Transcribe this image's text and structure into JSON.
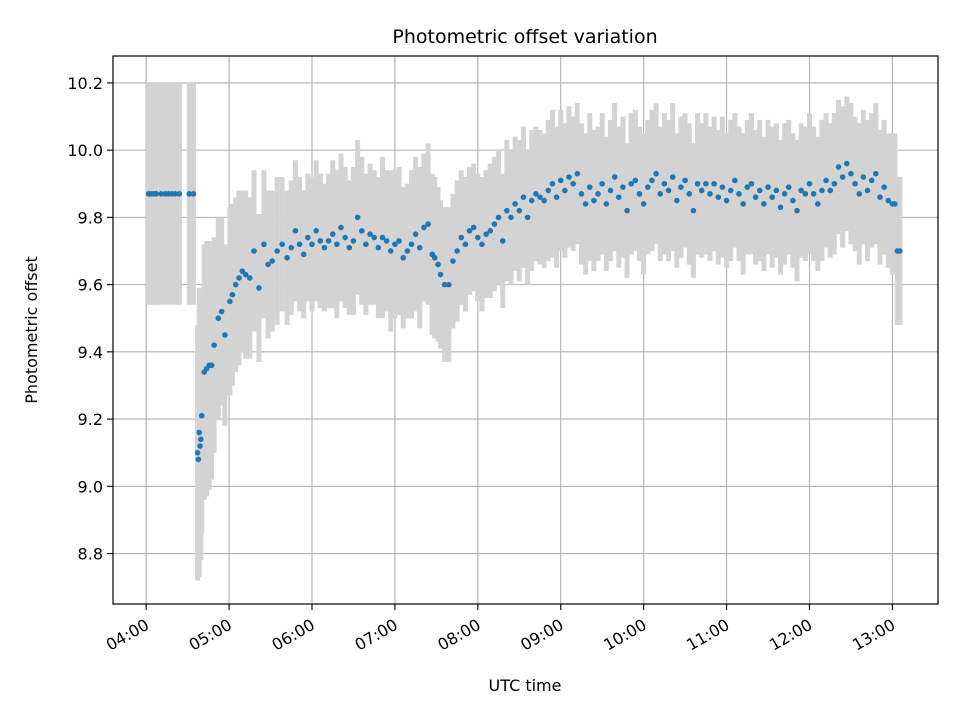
{
  "chart_data": {
    "type": "scatter",
    "title": "Photometric offset variation",
    "xlabel": "UTC time",
    "ylabel": "Photometric offset",
    "x_unit": "UTC hours",
    "xlim": [
      3.6,
      13.55
    ],
    "ylim": [
      8.65,
      10.28
    ],
    "x_ticks": [
      4,
      5,
      6,
      7,
      8,
      9,
      10,
      11,
      12,
      13
    ],
    "x_tick_labels": [
      "04:00",
      "05:00",
      "06:00",
      "07:00",
      "08:00",
      "09:00",
      "10:00",
      "11:00",
      "12:00",
      "13:00"
    ],
    "y_ticks": [
      8.8,
      9.0,
      9.2,
      9.4,
      9.6,
      9.8,
      10.0,
      10.2
    ],
    "y_tick_labels": [
      "8.8",
      "9.0",
      "9.2",
      "9.4",
      "9.6",
      "9.8",
      "10.0",
      "10.2"
    ],
    "grid": true,
    "legend": "none",
    "colors": {
      "points": "#1f77b4",
      "error_bars": "#d3d3d3",
      "grid": "#b0b0b0",
      "axes": "#000000"
    },
    "series": [
      {
        "x": [
          4.03,
          4.06,
          4.09,
          4.12,
          4.18,
          4.23,
          4.27,
          4.31,
          4.35,
          4.4,
          4.52,
          4.57,
          4.62,
          4.63,
          4.64,
          4.65,
          4.66,
          4.67,
          4.7,
          4.73,
          4.76,
          4.79,
          4.82,
          4.87,
          4.91,
          4.95,
          5.01,
          5.04,
          5.08,
          5.12,
          5.16,
          5.2,
          5.25,
          5.3,
          5.36,
          5.42,
          5.47,
          5.52,
          5.58,
          5.64,
          5.7,
          5.75,
          5.8,
          5.85,
          5.9,
          5.95,
          6.0,
          6.05,
          6.1,
          6.15,
          6.2,
          6.25,
          6.3,
          6.35,
          6.4,
          6.45,
          6.5,
          6.55,
          6.6,
          6.65,
          6.7,
          6.75,
          6.8,
          6.85,
          6.9,
          6.95,
          7.0,
          7.05,
          7.1,
          7.15,
          7.2,
          7.25,
          7.3,
          7.35,
          7.4,
          7.45,
          7.48,
          7.52,
          7.55,
          7.6,
          7.65,
          7.7,
          7.75,
          7.8,
          7.85,
          7.9,
          7.95,
          8.0,
          8.05,
          8.1,
          8.15,
          8.2,
          8.25,
          8.3,
          8.35,
          8.4,
          8.45,
          8.5,
          8.55,
          8.6,
          8.65,
          8.7,
          8.75,
          8.8,
          8.85,
          8.9,
          8.95,
          9.0,
          9.05,
          9.1,
          9.15,
          9.2,
          9.25,
          9.3,
          9.35,
          9.4,
          9.45,
          9.5,
          9.55,
          9.6,
          9.65,
          9.7,
          9.75,
          9.8,
          9.85,
          9.9,
          9.95,
          10.0,
          10.05,
          10.1,
          10.15,
          10.2,
          10.25,
          10.3,
          10.35,
          10.4,
          10.45,
          10.5,
          10.55,
          10.6,
          10.65,
          10.7,
          10.75,
          10.8,
          10.85,
          10.9,
          10.95,
          11.0,
          11.05,
          11.1,
          11.15,
          11.2,
          11.25,
          11.3,
          11.35,
          11.4,
          11.45,
          11.5,
          11.55,
          11.6,
          11.65,
          11.7,
          11.75,
          11.8,
          11.85,
          11.9,
          11.95,
          12.0,
          12.05,
          12.1,
          12.15,
          12.2,
          12.25,
          12.3,
          12.35,
          12.4,
          12.45,
          12.5,
          12.55,
          12.6,
          12.65,
          12.7,
          12.75,
          12.8,
          12.85,
          12.9,
          12.95,
          13.0,
          13.03,
          13.06,
          13.09
        ],
        "y": [
          9.87,
          9.87,
          9.87,
          9.87,
          9.87,
          9.87,
          9.87,
          9.87,
          9.87,
          9.87,
          9.87,
          9.87,
          9.1,
          9.08,
          9.16,
          9.12,
          9.14,
          9.21,
          9.34,
          9.35,
          9.36,
          9.36,
          9.42,
          9.5,
          9.52,
          9.45,
          9.55,
          9.57,
          9.6,
          9.62,
          9.64,
          9.63,
          9.62,
          9.7,
          9.59,
          9.72,
          9.66,
          9.67,
          9.7,
          9.72,
          9.68,
          9.71,
          9.76,
          9.72,
          9.69,
          9.74,
          9.72,
          9.76,
          9.73,
          9.71,
          9.73,
          9.75,
          9.72,
          9.77,
          9.74,
          9.71,
          9.73,
          9.8,
          9.76,
          9.72,
          9.75,
          9.74,
          9.71,
          9.74,
          9.73,
          9.7,
          9.72,
          9.73,
          9.68,
          9.7,
          9.72,
          9.75,
          9.71,
          9.77,
          9.78,
          9.69,
          9.68,
          9.66,
          9.63,
          9.6,
          9.6,
          9.67,
          9.7,
          9.74,
          9.72,
          9.76,
          9.77,
          9.74,
          9.72,
          9.75,
          9.76,
          9.78,
          9.8,
          9.73,
          9.82,
          9.8,
          9.84,
          9.82,
          9.86,
          9.8,
          9.85,
          9.87,
          9.86,
          9.85,
          9.88,
          9.9,
          9.86,
          9.91,
          9.88,
          9.92,
          9.9,
          9.93,
          9.87,
          9.84,
          9.89,
          9.85,
          9.87,
          9.9,
          9.84,
          9.88,
          9.92,
          9.86,
          9.89,
          9.82,
          9.9,
          9.91,
          9.87,
          9.84,
          9.89,
          9.91,
          9.93,
          9.87,
          9.9,
          9.88,
          9.92,
          9.85,
          9.89,
          9.91,
          9.87,
          9.82,
          9.9,
          9.88,
          9.9,
          9.87,
          9.9,
          9.86,
          9.89,
          9.85,
          9.88,
          9.91,
          9.87,
          9.84,
          9.89,
          9.9,
          9.86,
          9.88,
          9.84,
          9.89,
          9.86,
          9.88,
          9.83,
          9.87,
          9.89,
          9.85,
          9.82,
          9.88,
          9.87,
          9.9,
          9.87,
          9.84,
          9.88,
          9.91,
          9.88,
          9.9,
          9.95,
          9.92,
          9.96,
          9.93,
          9.9,
          9.87,
          9.92,
          9.88,
          9.91,
          9.93,
          9.86,
          9.89,
          9.85,
          9.84,
          9.84,
          9.7,
          9.7
        ],
        "error": [
          0.33,
          0.33,
          0.33,
          0.33,
          0.33,
          0.33,
          0.33,
          0.33,
          0.33,
          0.33,
          0.33,
          0.33,
          0.38,
          0.35,
          0.43,
          0.34,
          0.36,
          0.35,
          0.38,
          0.38,
          0.37,
          0.34,
          0.32,
          0.3,
          0.28,
          0.27,
          0.28,
          0.27,
          0.26,
          0.26,
          0.24,
          0.25,
          0.24,
          0.24,
          0.22,
          0.22,
          0.22,
          0.21,
          0.22,
          0.2,
          0.2,
          0.2,
          0.21,
          0.2,
          0.19,
          0.19,
          0.2,
          0.21,
          0.2,
          0.19,
          0.2,
          0.22,
          0.22,
          0.22,
          0.21,
          0.2,
          0.22,
          0.23,
          0.22,
          0.21,
          0.21,
          0.2,
          0.21,
          0.24,
          0.21,
          0.24,
          0.22,
          0.22,
          0.21,
          0.2,
          0.22,
          0.23,
          0.24,
          0.22,
          0.24,
          0.24,
          0.24,
          0.23,
          0.22,
          0.23,
          0.23,
          0.2,
          0.21,
          0.2,
          0.2,
          0.19,
          0.19,
          0.19,
          0.2,
          0.19,
          0.2,
          0.2,
          0.2,
          0.2,
          0.21,
          0.2,
          0.2,
          0.21,
          0.21,
          0.2,
          0.21,
          0.2,
          0.2,
          0.2,
          0.21,
          0.22,
          0.21,
          0.21,
          0.2,
          0.21,
          0.2,
          0.21,
          0.21,
          0.21,
          0.22,
          0.21,
          0.2,
          0.21,
          0.2,
          0.21,
          0.22,
          0.21,
          0.21,
          0.2,
          0.21,
          0.21,
          0.2,
          0.21,
          0.2,
          0.21,
          0.21,
          0.2,
          0.21,
          0.21,
          0.22,
          0.2,
          0.21,
          0.2,
          0.21,
          0.2,
          0.21,
          0.2,
          0.21,
          0.2,
          0.2,
          0.2,
          0.21,
          0.2,
          0.21,
          0.2,
          0.2,
          0.21,
          0.2,
          0.21,
          0.2,
          0.21,
          0.2,
          0.2,
          0.21,
          0.2,
          0.2,
          0.21,
          0.2,
          0.2,
          0.21,
          0.2,
          0.2,
          0.21,
          0.2,
          0.2,
          0.21,
          0.2,
          0.2,
          0.21,
          0.2,
          0.21,
          0.2,
          0.21,
          0.2,
          0.21,
          0.2,
          0.21,
          0.2,
          0.21,
          0.2,
          0.2,
          0.2,
          0.21,
          0.21,
          0.22,
          0.22
        ]
      }
    ]
  }
}
